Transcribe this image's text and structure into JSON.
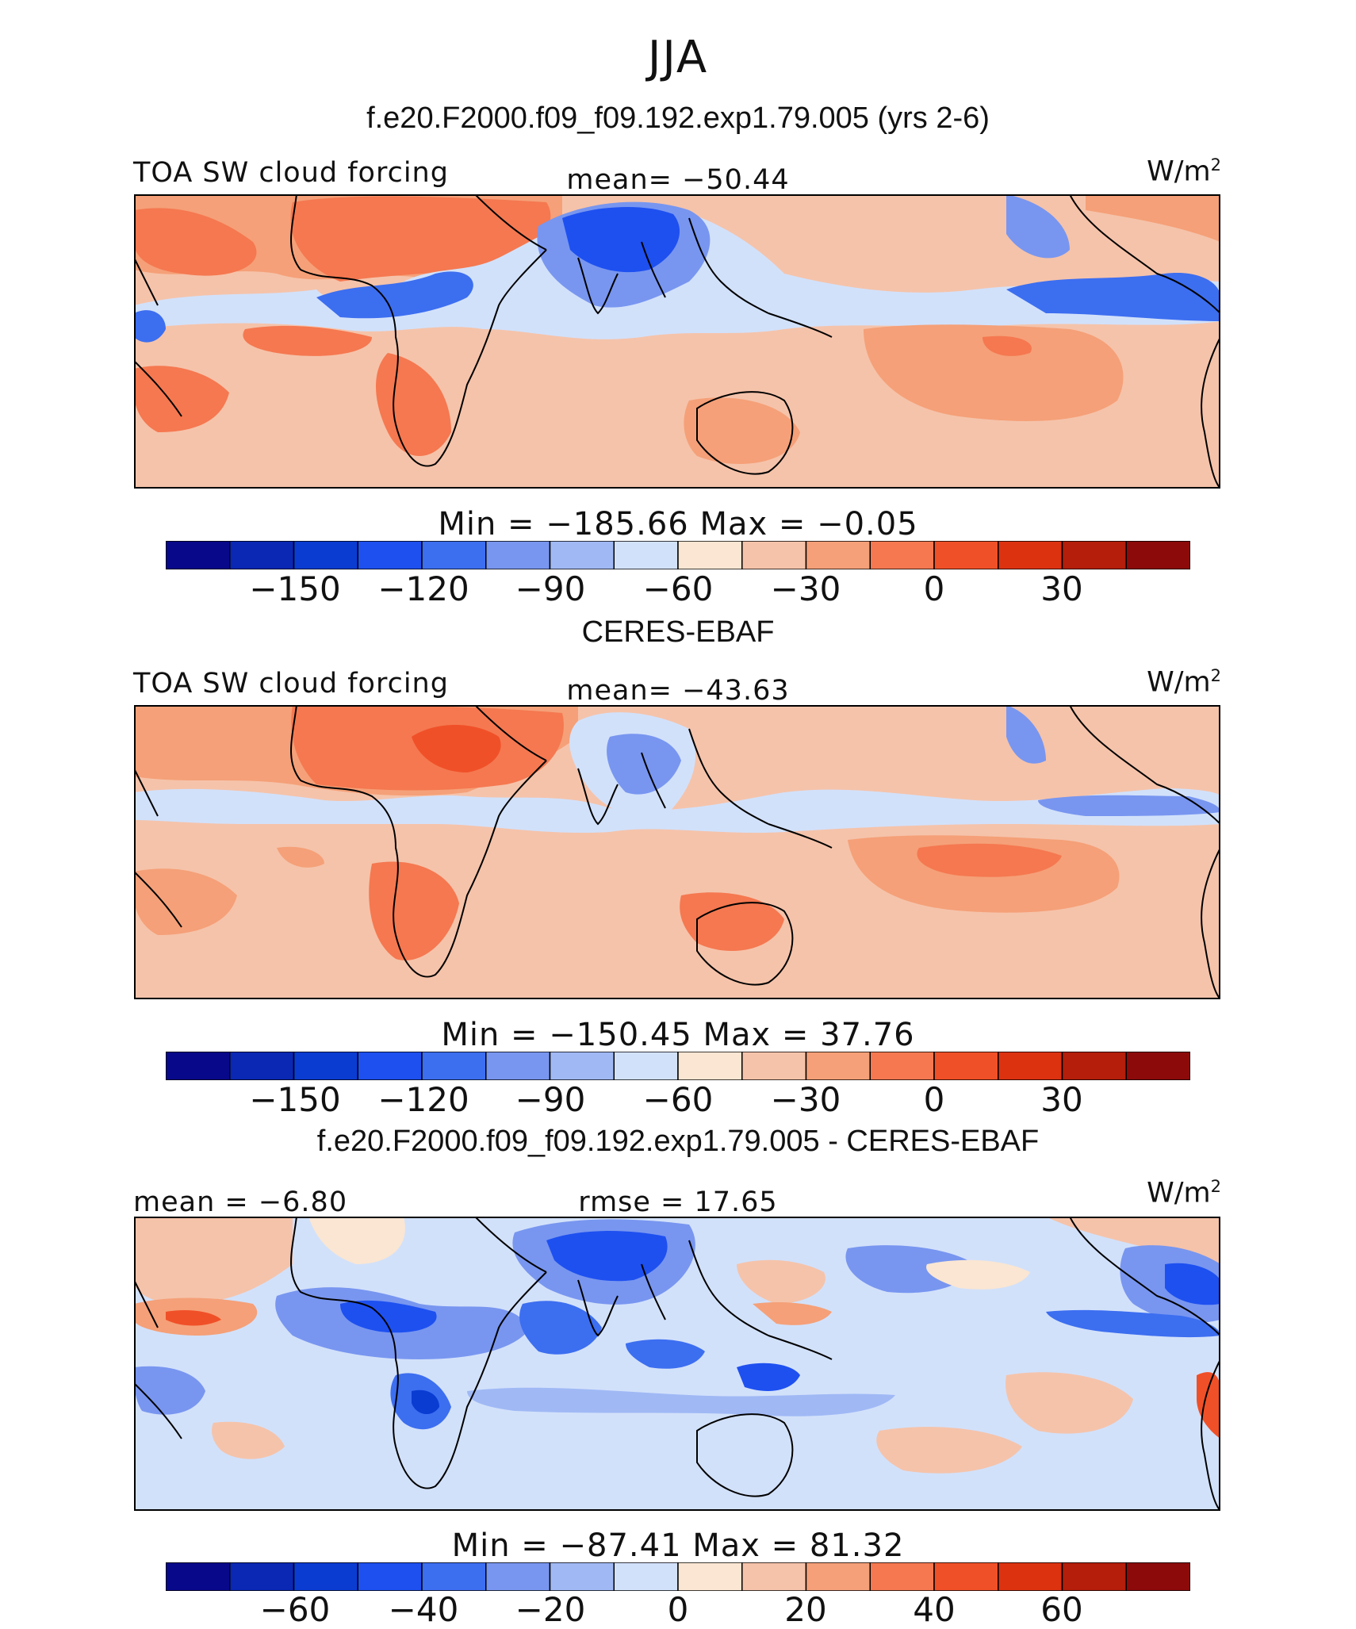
{
  "main_title": "JJA",
  "colors": {
    "sw_scale": [
      "#08088a",
      "#0a28b4",
      "#0a3cd2",
      "#1e50f0",
      "#3c6ef0",
      "#7896f0",
      "#a0b9f5",
      "#d2e1fa",
      "#fae6d2",
      "#f5c3aa",
      "#f5a078",
      "#f57850",
      "#f05028",
      "#dc3210",
      "#b41e0a",
      "#8c0a0a"
    ],
    "diff_scale": [
      "#08088a",
      "#0a28b4",
      "#0a3cd2",
      "#1e50f0",
      "#3c6ef0",
      "#7896f0",
      "#a0b9f5",
      "#d2e1fa",
      "#fae6d2",
      "#f5c3aa",
      "#f5a078",
      "#f57850",
      "#f05028",
      "#dc3210",
      "#b41e0a",
      "#8c0a0a"
    ]
  },
  "panels": [
    {
      "id": "model",
      "title": "f.e20.F2000.f09_f09.192.exp1.79.005 (yrs 2-6)",
      "variable": "TOA SW cloud forcing",
      "center_label": "mean=  −50.44",
      "units": "W/m",
      "units_exp": "2",
      "minmax": "Min  =  −185.66  Max  =   −0.05",
      "tick_labels": [
        "−150",
        "−120",
        "−90",
        "−60",
        "−30",
        "0",
        "30"
      ]
    },
    {
      "id": "obs",
      "title": "CERES-EBAF",
      "variable": "TOA SW cloud forcing",
      "center_label": "mean=  −43.63",
      "units": "W/m",
      "units_exp": "2",
      "minmax": "Min  =  −150.45  Max  =   37.76",
      "tick_labels": [
        "−150",
        "−120",
        "−90",
        "−60",
        "−30",
        "0",
        "30"
      ]
    },
    {
      "id": "diff",
      "title": "f.e20.F2000.f09_f09.192.exp1.79.005 - CERES-EBAF",
      "variable": "mean  =   −6.80",
      "center_label": "rmse  =   17.65",
      "units": "W/m",
      "units_exp": "2",
      "minmax": "Min  =  −87.41  Max  =   81.32",
      "tick_labels": [
        "−60",
        "−40",
        "−20",
        "0",
        "20",
        "40",
        "60"
      ]
    }
  ]
}
